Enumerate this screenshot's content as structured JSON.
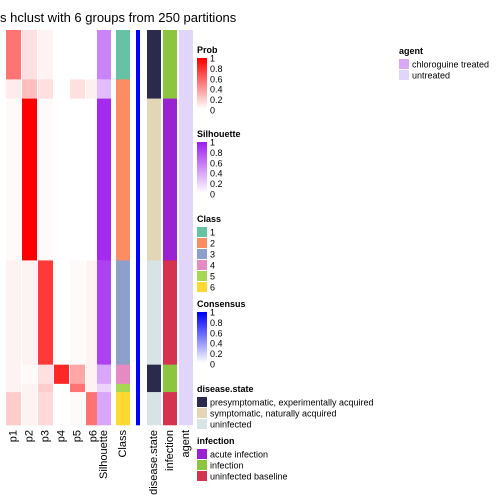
{
  "title": "s hclust with 6 groups from 250 partitions",
  "chart_data": {
    "type": "heatmap",
    "title": "s hclust with 6 groups from 250 partitions",
    "columns": [
      "p1",
      "p2",
      "p3",
      "p4",
      "p5",
      "p6",
      "Silhouette",
      "Class",
      "",
      "disease.state",
      "infection",
      "agent"
    ],
    "row_groups": [
      {
        "class": 1,
        "rows": 18,
        "p": [
          0.55,
          0.12,
          0.05,
          0.0,
          0.0,
          0.0
        ],
        "silhouette": 0.55,
        "disease_state": "presymptomatic, experimentally acquired",
        "infection": "infection",
        "agent": "untreated"
      },
      {
        "class": 2,
        "rows": 7,
        "p": [
          0.08,
          0.25,
          0.12,
          0.0,
          0.12,
          0.06
        ],
        "silhouette": 0.3,
        "disease_state": "presymptomatic, experimentally acquired",
        "infection": "infection",
        "agent": "untreated"
      },
      {
        "class": 2,
        "rows": 59,
        "p": [
          0.02,
          1.0,
          0.02,
          0.0,
          0.0,
          0.0
        ],
        "silhouette": 0.95,
        "disease_state": "symptomatic, naturally acquired",
        "infection": "acute infection",
        "agent": "untreated"
      },
      {
        "class": 3,
        "rows": 38,
        "p": [
          0.05,
          0.05,
          0.78,
          0.0,
          0.02,
          0.05
        ],
        "silhouette": 0.85,
        "disease_state": "uninfected",
        "infection": "uninfected baseline",
        "agent": "untreated"
      },
      {
        "class": 4,
        "rows": 7,
        "p": [
          0.05,
          0.02,
          0.12,
          0.85,
          0.35,
          0.05
        ],
        "silhouette": 0.4,
        "disease_state": "presymptomatic, experimentally acquired",
        "infection": "infection",
        "agent": "untreated"
      },
      {
        "class": 5,
        "rows": 3,
        "p": [
          0.05,
          0.05,
          0.2,
          0.0,
          0.55,
          0.05
        ],
        "silhouette": 0.2,
        "disease_state": "presymptomatic, experimentally acquired",
        "infection": "infection",
        "agent": "untreated"
      },
      {
        "class": 6,
        "rows": 12,
        "p": [
          0.2,
          0.05,
          0.15,
          0.0,
          0.02,
          0.55
        ],
        "silhouette": 0.4,
        "disease_state": "uninfected",
        "infection": "uninfected baseline",
        "agent": "untreated"
      }
    ],
    "legends": {
      "prob": {
        "title": "Prob",
        "ticks": [
          "1",
          "0.8",
          "0.6",
          "0.4",
          "0.2",
          "0"
        ],
        "colors": [
          "#ffffff",
          "#ff0000"
        ]
      },
      "silhouette": {
        "title": "Silhouette",
        "ticks": [
          "1",
          "0.8",
          "0.6",
          "0.4",
          "0.2",
          "0"
        ],
        "colors": [
          "#ffffff",
          "#a020f0"
        ]
      },
      "class": {
        "title": "Class",
        "items": [
          {
            "label": "1",
            "color": "#66c2a5"
          },
          {
            "label": "2",
            "color": "#fc8d62"
          },
          {
            "label": "3",
            "color": "#8da0cb"
          },
          {
            "label": "4",
            "color": "#e78ac3"
          },
          {
            "label": "5",
            "color": "#a6d854"
          },
          {
            "label": "6",
            "color": "#ffd92f"
          }
        ]
      },
      "consensus": {
        "title": "Consensus",
        "ticks": [
          "1",
          "0.8",
          "0.6",
          "0.4",
          "0.2",
          "0"
        ],
        "colors": [
          "#ffffff",
          "#0000ff"
        ]
      },
      "disease_state": {
        "title": "disease.state",
        "items": [
          {
            "label": "presymptomatic, experimentally acquired",
            "color": "#2b2a4c"
          },
          {
            "label": "symptomatic, naturally acquired",
            "color": "#e3d6b6"
          },
          {
            "label": "uninfected",
            "color": "#d7e3e5"
          }
        ]
      },
      "infection": {
        "title": "infection",
        "items": [
          {
            "label": "acute infection",
            "color": "#9b22d2"
          },
          {
            "label": "infection",
            "color": "#8cc63f"
          },
          {
            "label": "uninfected baseline",
            "color": "#d5334e"
          }
        ]
      },
      "agent": {
        "title": "agent",
        "items": [
          {
            "label": "chloroguine treated",
            "color": "#d9a9f6"
          },
          {
            "label": "untreated",
            "color": "#e1d5fb"
          }
        ]
      }
    }
  }
}
